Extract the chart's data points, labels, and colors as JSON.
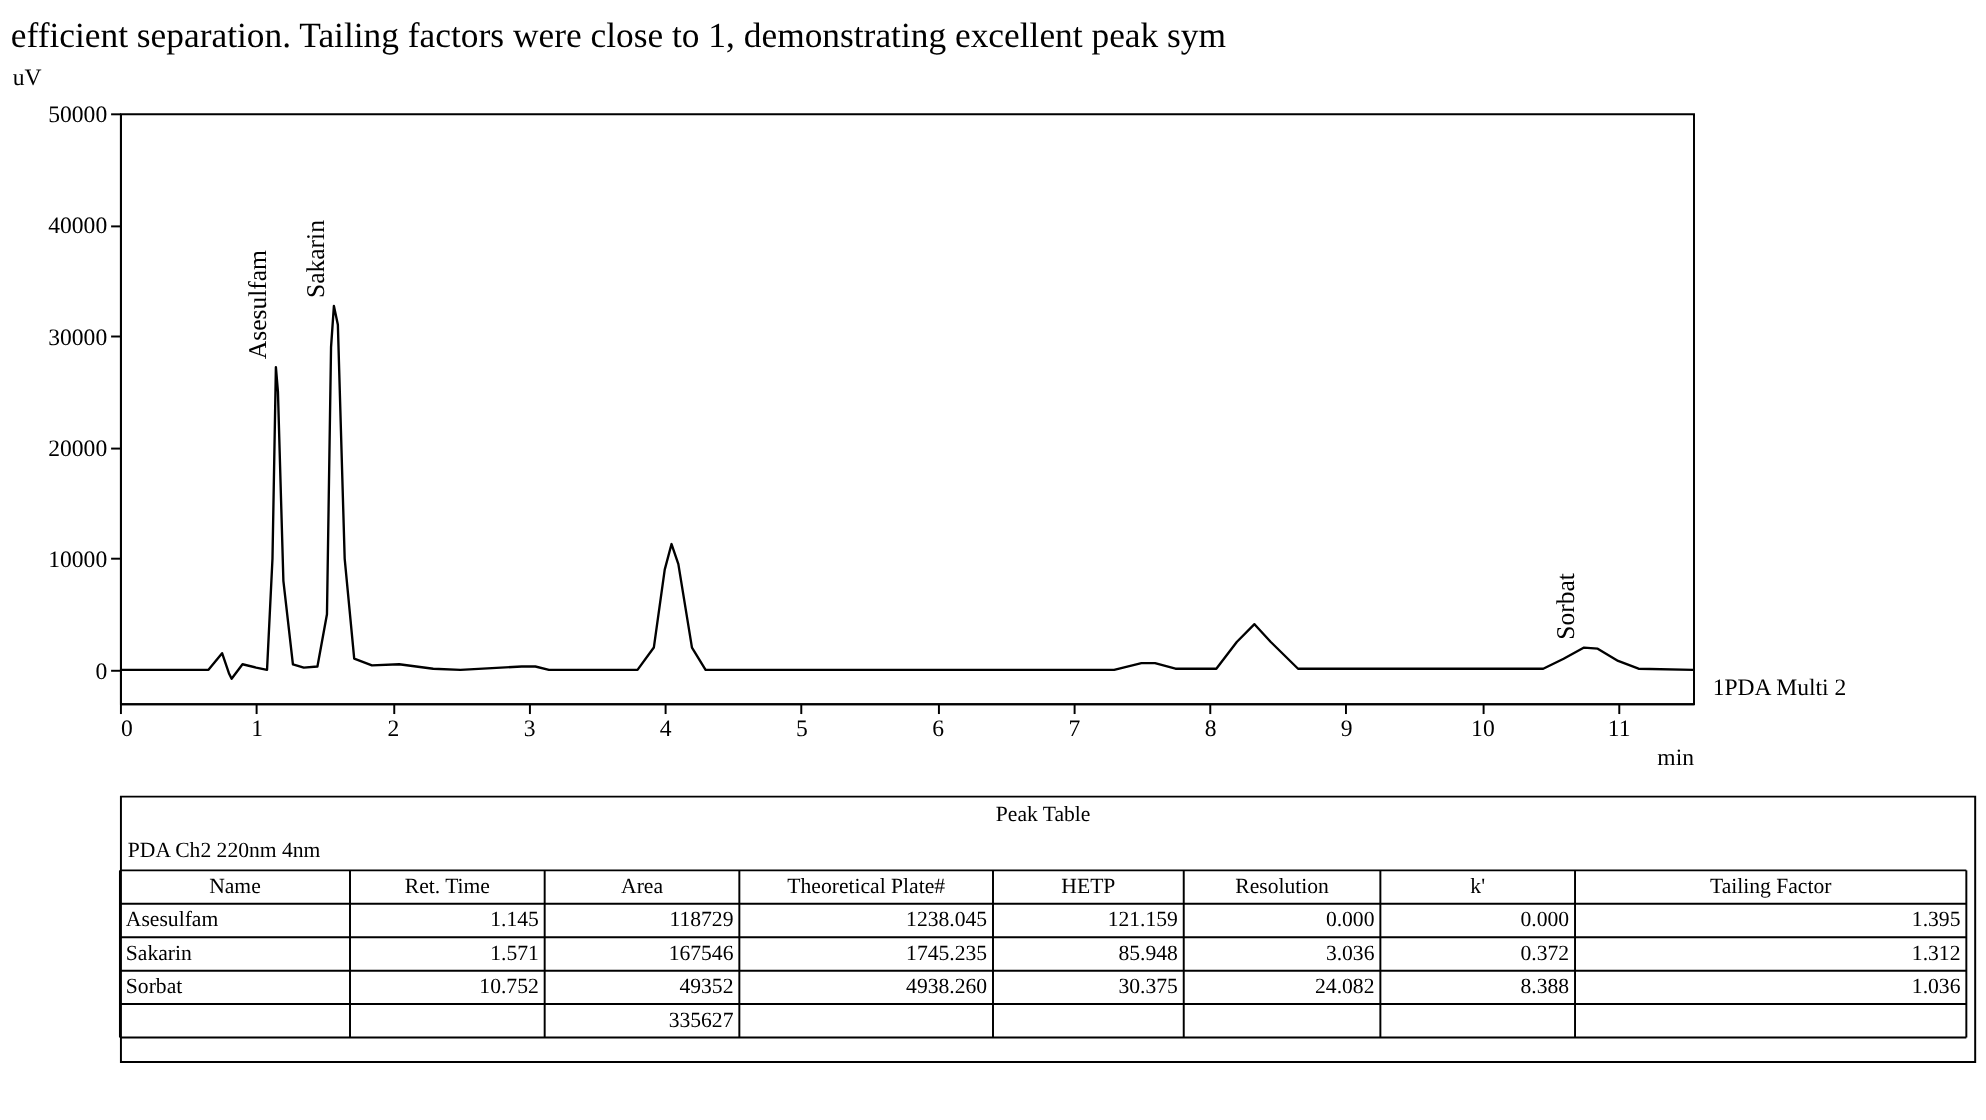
{
  "chart_data": {
    "type": "line",
    "xlabel": "min",
    "ylabel": "uV",
    "xlim": [
      0,
      11.55
    ],
    "ylim": [
      -3000,
      50000
    ],
    "xticks": [
      0,
      1,
      2,
      3,
      4,
      5,
      6,
      7,
      8,
      9,
      10,
      11
    ],
    "yticks": [
      0,
      10000,
      20000,
      30000,
      40000,
      50000
    ],
    "series": [
      {
        "name": "1PDA Multi 2",
        "color": "#000000",
        "x": [
          0,
          0.65,
          0.75,
          0.8,
          0.82,
          0.9,
          1.0,
          1.08,
          1.12,
          1.145,
          1.16,
          1.2,
          1.27,
          1.35,
          1.45,
          1.52,
          1.55,
          1.571,
          1.6,
          1.65,
          1.72,
          1.85,
          2.05,
          2.3,
          2.5,
          2.95,
          3.05,
          3.15,
          3.8,
          3.92,
          4.0,
          4.05,
          4.1,
          4.2,
          4.3,
          7.3,
          7.5,
          7.6,
          7.75,
          8.05,
          8.2,
          8.33,
          8.45,
          8.65,
          10.45,
          10.6,
          10.75,
          10.85,
          11.0,
          11.15,
          11.55
        ],
        "values": [
          0,
          0,
          1500,
          -300,
          -800,
          500,
          200,
          0,
          10000,
          27200,
          25000,
          8000,
          500,
          200,
          300,
          5000,
          29000,
          32700,
          31000,
          10000,
          1000,
          400,
          500,
          100,
          0,
          300,
          300,
          0,
          0,
          2000,
          9000,
          11300,
          9500,
          2000,
          0,
          0,
          600,
          600,
          100,
          100,
          2500,
          4100,
          2500,
          100,
          100,
          1000,
          2000,
          1900,
          800,
          100,
          0
        ]
      }
    ],
    "annotations": [
      "efficient separation. Tailing factors were close to 1, demonstrating excellent peak sym",
      "Peak Table",
      "PDA Ch2 220nm 4nm",
      "Name",
      "Ret. Time",
      "Area",
      "Theoretical Plate#",
      "HETP",
      "Resolution",
      "k'",
      "Tailing Factor",
      "Asesulfam",
      "1.145",
      "118729",
      "1238.045",
      "121.159",
      "0.000",
      "0.000",
      "1.395",
      "Sakarin",
      "1.571",
      "167546",
      "1745.235",
      "85.948",
      "3.036",
      "0.372",
      "1.312",
      "Sorbat",
      "10.752",
      "49352",
      "4938.260",
      "30.375",
      "24.082",
      "8.388",
      "1.036",
      null,
      null,
      "335627",
      null,
      null,
      null,
      null,
      null,
      {
        "text": "Asesulfam",
        "x": 1.145,
        "y": 27200
      },
      {
        "text": "Sakarin",
        "x": 1.571,
        "y": 32700
      },
      {
        "text": "Sorbat",
        "x": 10.752,
        "y": 2000
      }
    ]
  }
}
